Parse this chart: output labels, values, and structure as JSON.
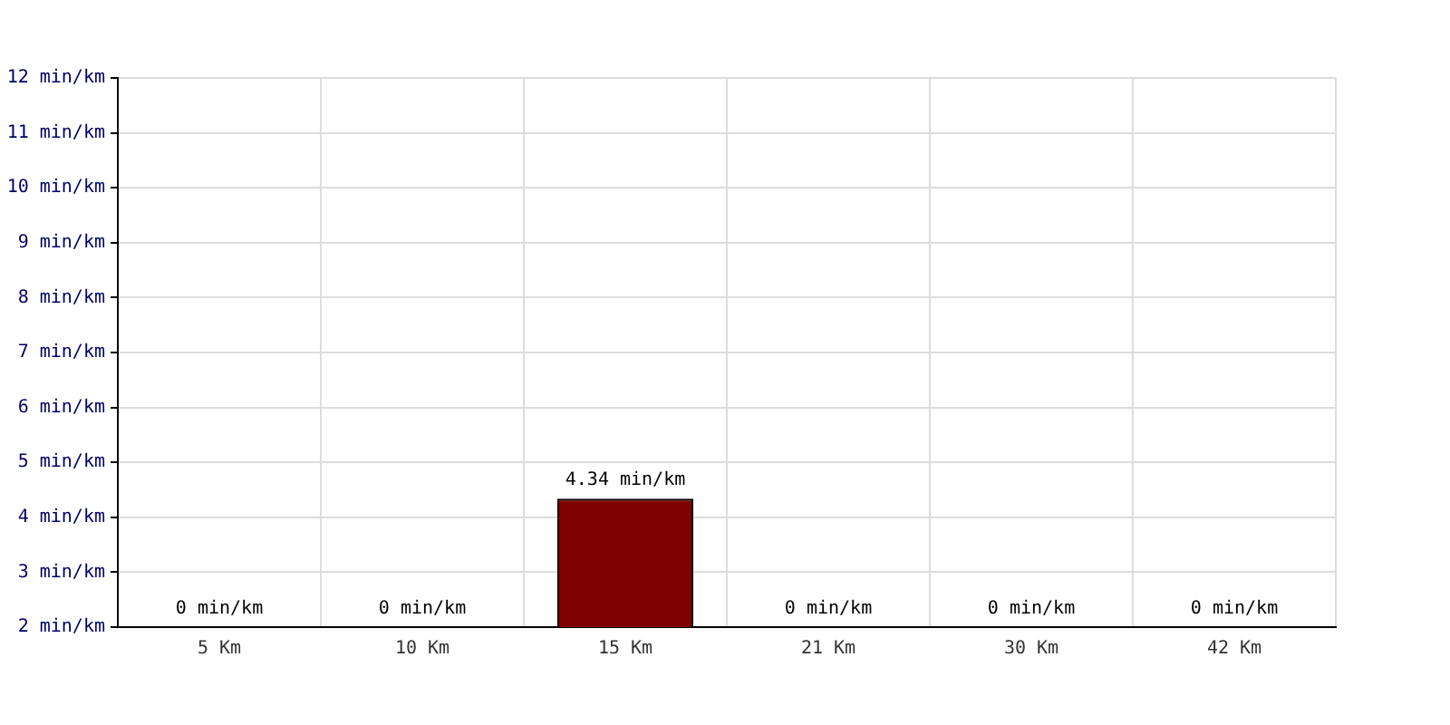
{
  "chart_data": {
    "type": "bar",
    "categories": [
      "5 Km",
      "10 Km",
      "15 Km",
      "21 Km",
      "30 Km",
      "42 Km"
    ],
    "values": [
      null,
      null,
      4.34,
      null,
      null,
      null
    ],
    "value_labels": [
      "0 min/km",
      "0 min/km",
      "4.34 min/km",
      "0 min/km",
      "0 min/km",
      "0 min/km"
    ],
    "color": "#7f0000",
    "ylim": [
      2,
      12
    ],
    "yticks": [
      {
        "value": 2,
        "label": "2 min/km"
      },
      {
        "value": 3,
        "label": "3 min/km"
      },
      {
        "value": 4,
        "label": "4 min/km"
      },
      {
        "value": 5,
        "label": "5 min/km"
      },
      {
        "value": 6,
        "label": "6 min/km"
      },
      {
        "value": 7,
        "label": "7 min/km"
      },
      {
        "value": 8,
        "label": "8 min/km"
      },
      {
        "value": 9,
        "label": "9 min/km"
      },
      {
        "value": 10,
        "label": "10 min/km"
      },
      {
        "value": 11,
        "label": "11 min/km"
      },
      {
        "value": 12,
        "label": "12 min/km"
      }
    ],
    "grid": true,
    "legend": false
  }
}
